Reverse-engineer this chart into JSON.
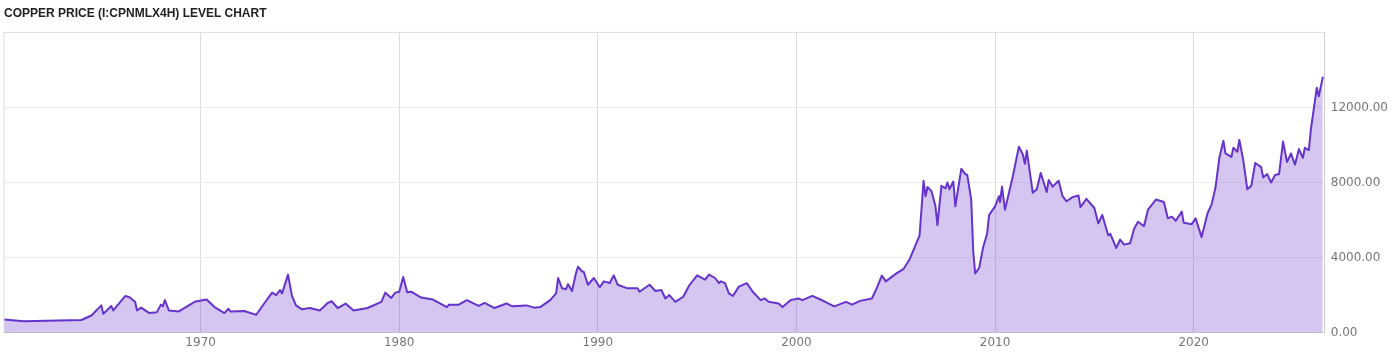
{
  "chart_data": {
    "type": "area",
    "title": "COPPER PRICE (I:CPNMLX4H) LEVEL CHART",
    "xlim": [
      1960.1,
      2026.6
    ],
    "xticks": [
      1970,
      1980,
      1990,
      2000,
      2010,
      2020
    ],
    "ylim": [
      0,
      16000
    ],
    "yticks": [
      {
        "value": 0,
        "label": "0.00"
      },
      {
        "value": 4000,
        "label": "4000.00"
      },
      {
        "value": 8000,
        "label": "8000.00"
      },
      {
        "value": 12000,
        "label": "12000.00"
      }
    ],
    "grid": true,
    "legend": false,
    "marker": "none",
    "series": [
      {
        "color": "#6633cc",
        "x": [
          1960.1,
          1961.1,
          1964.0,
          1964.5,
          1965.0,
          1965.1,
          1965.5,
          1965.6,
          1966.2,
          1966.4,
          1966.7,
          1966.8,
          1967.0,
          1967.4,
          1967.8,
          1968.0,
          1968.1,
          1968.2,
          1968.4,
          1968.9,
          1969.7,
          1970.3,
          1970.7,
          1971.2,
          1971.4,
          1971.5,
          1972.2,
          1972.8,
          1973.2,
          1973.6,
          1973.8,
          1974.0,
          1974.1,
          1974.4,
          1974.6,
          1974.8,
          1975.1,
          1975.5,
          1976.0,
          1976.4,
          1976.6,
          1976.9,
          1977.3,
          1977.7,
          1978.4,
          1979.1,
          1979.3,
          1979.6,
          1979.8,
          1980.0,
          1980.2,
          1980.4,
          1980.6,
          1981.1,
          1981.7,
          1982.4,
          1982.5,
          1983.0,
          1983.4,
          1984.0,
          1984.3,
          1984.8,
          1985.4,
          1985.7,
          1986.4,
          1986.8,
          1987.1,
          1987.6,
          1987.9,
          1988.0,
          1988.2,
          1988.4,
          1988.5,
          1988.7,
          1988.9,
          1989.0,
          1989.2,
          1989.3,
          1989.5,
          1989.8,
          1990.1,
          1990.3,
          1990.6,
          1990.8,
          1991.0,
          1991.5,
          1992.0,
          1992.1,
          1992.6,
          1992.9,
          1993.2,
          1993.4,
          1993.6,
          1993.9,
          1994.3,
          1994.6,
          1995.0,
          1995.4,
          1995.6,
          1995.9,
          1996.1,
          1996.2,
          1996.4,
          1996.6,
          1996.8,
          1997.1,
          1997.5,
          1997.8,
          1998.2,
          1998.4,
          1998.6,
          1999.1,
          1999.3,
          1999.7,
          2000.1,
          2000.3,
          2000.8,
          2001.4,
          2001.9,
          2002.5,
          2002.8,
          2003.2,
          2003.8,
          2004.0,
          2004.3,
          2004.5,
          2005.0,
          2005.4,
          2005.7,
          2006.2,
          2006.4,
          2006.5,
          2006.6,
          2006.8,
          2007.0,
          2007.1,
          2007.3,
          2007.5,
          2007.6,
          2007.7,
          2007.9,
          2008.0,
          2008.3,
          2008.5,
          2008.6,
          2008.8,
          2008.9,
          2009.0,
          2009.2,
          2009.4,
          2009.6,
          2009.7,
          2010.0,
          2010.2,
          2010.25,
          2010.35,
          2010.5,
          2010.9,
          2011.2,
          2011.4,
          2011.5,
          2011.6,
          2011.9,
          2012.1,
          2012.3,
          2012.6,
          2012.7,
          2012.9,
          2013.2,
          2013.4,
          2013.6,
          2013.9,
          2014.2,
          2014.3,
          2014.6,
          2015.0,
          2015.2,
          2015.4,
          2015.7,
          2015.8,
          2016.1,
          2016.3,
          2016.5,
          2016.8,
          2017.0,
          2017.2,
          2017.5,
          2017.7,
          2018.1,
          2018.5,
          2018.7,
          2018.9,
          2019.1,
          2019.4,
          2019.5,
          2019.9,
          2020.1,
          2020.4,
          2020.7,
          2020.9,
          2021.1,
          2021.3,
          2021.5,
          2021.6,
          2021.9,
          2022.0,
          2022.2,
          2022.3,
          2022.5,
          2022.7,
          2022.9,
          2023.1,
          2023.4,
          2023.5,
          2023.7,
          2023.9,
          2024.1,
          2024.3,
          2024.5,
          2024.7,
          2024.9,
          2025.1,
          2025.3,
          2025.5,
          2025.6,
          2025.8,
          2025.9,
          2026.2,
          2026.3,
          2026.5
        ],
        "values": [
          700,
          600,
          670,
          910,
          1450,
          1000,
          1420,
          1180,
          1950,
          1900,
          1640,
          1180,
          1330,
          1050,
          1090,
          1490,
          1400,
          1730,
          1180,
          1130,
          1640,
          1760,
          1360,
          1040,
          1270,
          1130,
          1150,
          950,
          1550,
          2130,
          2000,
          2270,
          2090,
          3090,
          1960,
          1450,
          1240,
          1310,
          1180,
          1580,
          1670,
          1310,
          1550,
          1180,
          1310,
          1640,
          2130,
          1850,
          2130,
          2180,
          2960,
          2150,
          2180,
          1870,
          1760,
          1360,
          1490,
          1490,
          1730,
          1420,
          1580,
          1310,
          1550,
          1400,
          1450,
          1330,
          1360,
          1730,
          2090,
          2910,
          2360,
          2310,
          2580,
          2220,
          3180,
          3510,
          3270,
          3220,
          2550,
          2910,
          2420,
          2730,
          2640,
          3050,
          2550,
          2360,
          2360,
          2180,
          2550,
          2220,
          2270,
          1820,
          2000,
          1640,
          1910,
          2510,
          3050,
          2820,
          3090,
          2910,
          2640,
          2730,
          2640,
          2090,
          1950,
          2450,
          2640,
          2180,
          1730,
          1820,
          1640,
          1550,
          1360,
          1730,
          1820,
          1730,
          1960,
          1670,
          1400,
          1640,
          1490,
          1690,
          1820,
          2270,
          3040,
          2730,
          3130,
          3400,
          3910,
          5180,
          8090,
          7270,
          7760,
          7540,
          6730,
          5730,
          7820,
          7690,
          8000,
          7640,
          8050,
          6730,
          8730,
          8450,
          8400,
          7090,
          4360,
          3150,
          3450,
          4550,
          5270,
          6270,
          6730,
          7270,
          6950,
          7780,
          6550,
          8360,
          9910,
          9490,
          9000,
          9690,
          7450,
          7640,
          8510,
          7490,
          8130,
          7780,
          8090,
          7270,
          7000,
          7220,
          7310,
          6690,
          7130,
          6640,
          5820,
          6270,
          5180,
          5270,
          4510,
          4960,
          4690,
          4760,
          5540,
          5910,
          5670,
          6550,
          7090,
          6960,
          6090,
          6180,
          5960,
          6450,
          5850,
          5780,
          6090,
          5090,
          6360,
          6820,
          7730,
          9360,
          10220,
          9550,
          9360,
          9850,
          9640,
          10270,
          9180,
          7640,
          7820,
          9040,
          8820,
          8270,
          8450,
          8000,
          8400,
          8450,
          10180,
          9090,
          9550,
          8950,
          9780,
          9310,
          9850,
          9730,
          10820,
          13050,
          12600,
          13600
        ]
      }
    ]
  }
}
